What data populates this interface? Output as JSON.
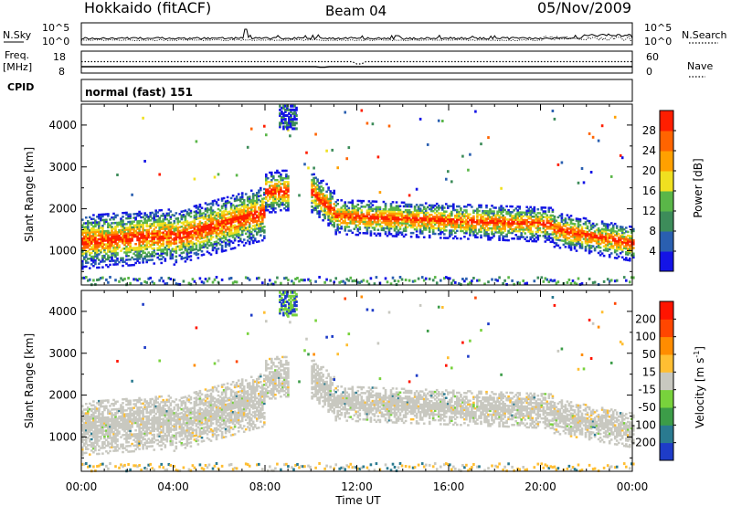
{
  "header": {
    "station": "Hokkaido (fitACF)",
    "beam": "Beam 04",
    "date": "05/Nov/2009",
    "cpid_label": "CPID",
    "cpid_value": "normal (fast) 151"
  },
  "chart_data": [
    {
      "type": "line",
      "panel": "N.Sky / N.Search",
      "left_label": "N.Sky",
      "right_label": "N.Search",
      "left_ticks": [
        "10^5",
        "10^0"
      ],
      "right_ticks": [
        "10^5",
        "10^0"
      ],
      "series": [
        {
          "name": "N.Sky",
          "style": "solid"
        },
        {
          "name": "N.Search",
          "style": "dotted"
        }
      ]
    },
    {
      "type": "line",
      "panel": "Freq / Nave",
      "left_label": "Freq.",
      "left_unit": "[MHz]",
      "right_label": "Nave",
      "left_ticks": [
        "18",
        "8"
      ],
      "right_ticks": [
        "60",
        "0"
      ],
      "series": [
        {
          "name": "Freq.",
          "style": "solid"
        },
        {
          "name": "Nave",
          "style": "dotted"
        }
      ]
    },
    {
      "type": "heatmap",
      "panel": "power",
      "ylabel": "Slant Range [km]",
      "yticks": [
        1000,
        2000,
        3000,
        4000
      ],
      "ylim": [
        180,
        4500
      ],
      "xlim_hours": [
        0,
        24
      ],
      "colorbar": {
        "label": "Power [dB]",
        "ticks": [
          "4",
          "8",
          "12",
          "16",
          "20",
          "24",
          "28"
        ],
        "colors": [
          "#1414e6",
          "#2a5fb0",
          "#3d8c5a",
          "#5ab648",
          "#f0e020",
          "#ffa000",
          "#ff6400",
          "#ff1e00"
        ]
      }
    },
    {
      "type": "heatmap",
      "panel": "velocity",
      "ylabel": "Slant Range [km]",
      "yticks": [
        1000,
        2000,
        3000,
        4000
      ],
      "ylim": [
        180,
        4500
      ],
      "xlim_hours": [
        0,
        24
      ],
      "colorbar": {
        "label": "Velocity [m s",
        "label_sup": "-1",
        "label_end": "]",
        "ticks": [
          "200",
          "100",
          "50",
          "15",
          "-15",
          "-50",
          "-100",
          "-200"
        ],
        "colors": [
          "#1e3cc8",
          "#2a7a90",
          "#3c9c48",
          "#78d23c",
          "#c8c8c0",
          "#ffbe32",
          "#ff8c00",
          "#ff4600",
          "#ff1400"
        ]
      }
    }
  ],
  "xaxis": {
    "ticks": [
      "00:00",
      "04:00",
      "08:00",
      "12:00",
      "16:00",
      "20:00",
      "00:00"
    ],
    "label": "Time UT"
  },
  "colors": {
    "ground_scatter": "#c8c8c0",
    "axis": "#000000"
  }
}
